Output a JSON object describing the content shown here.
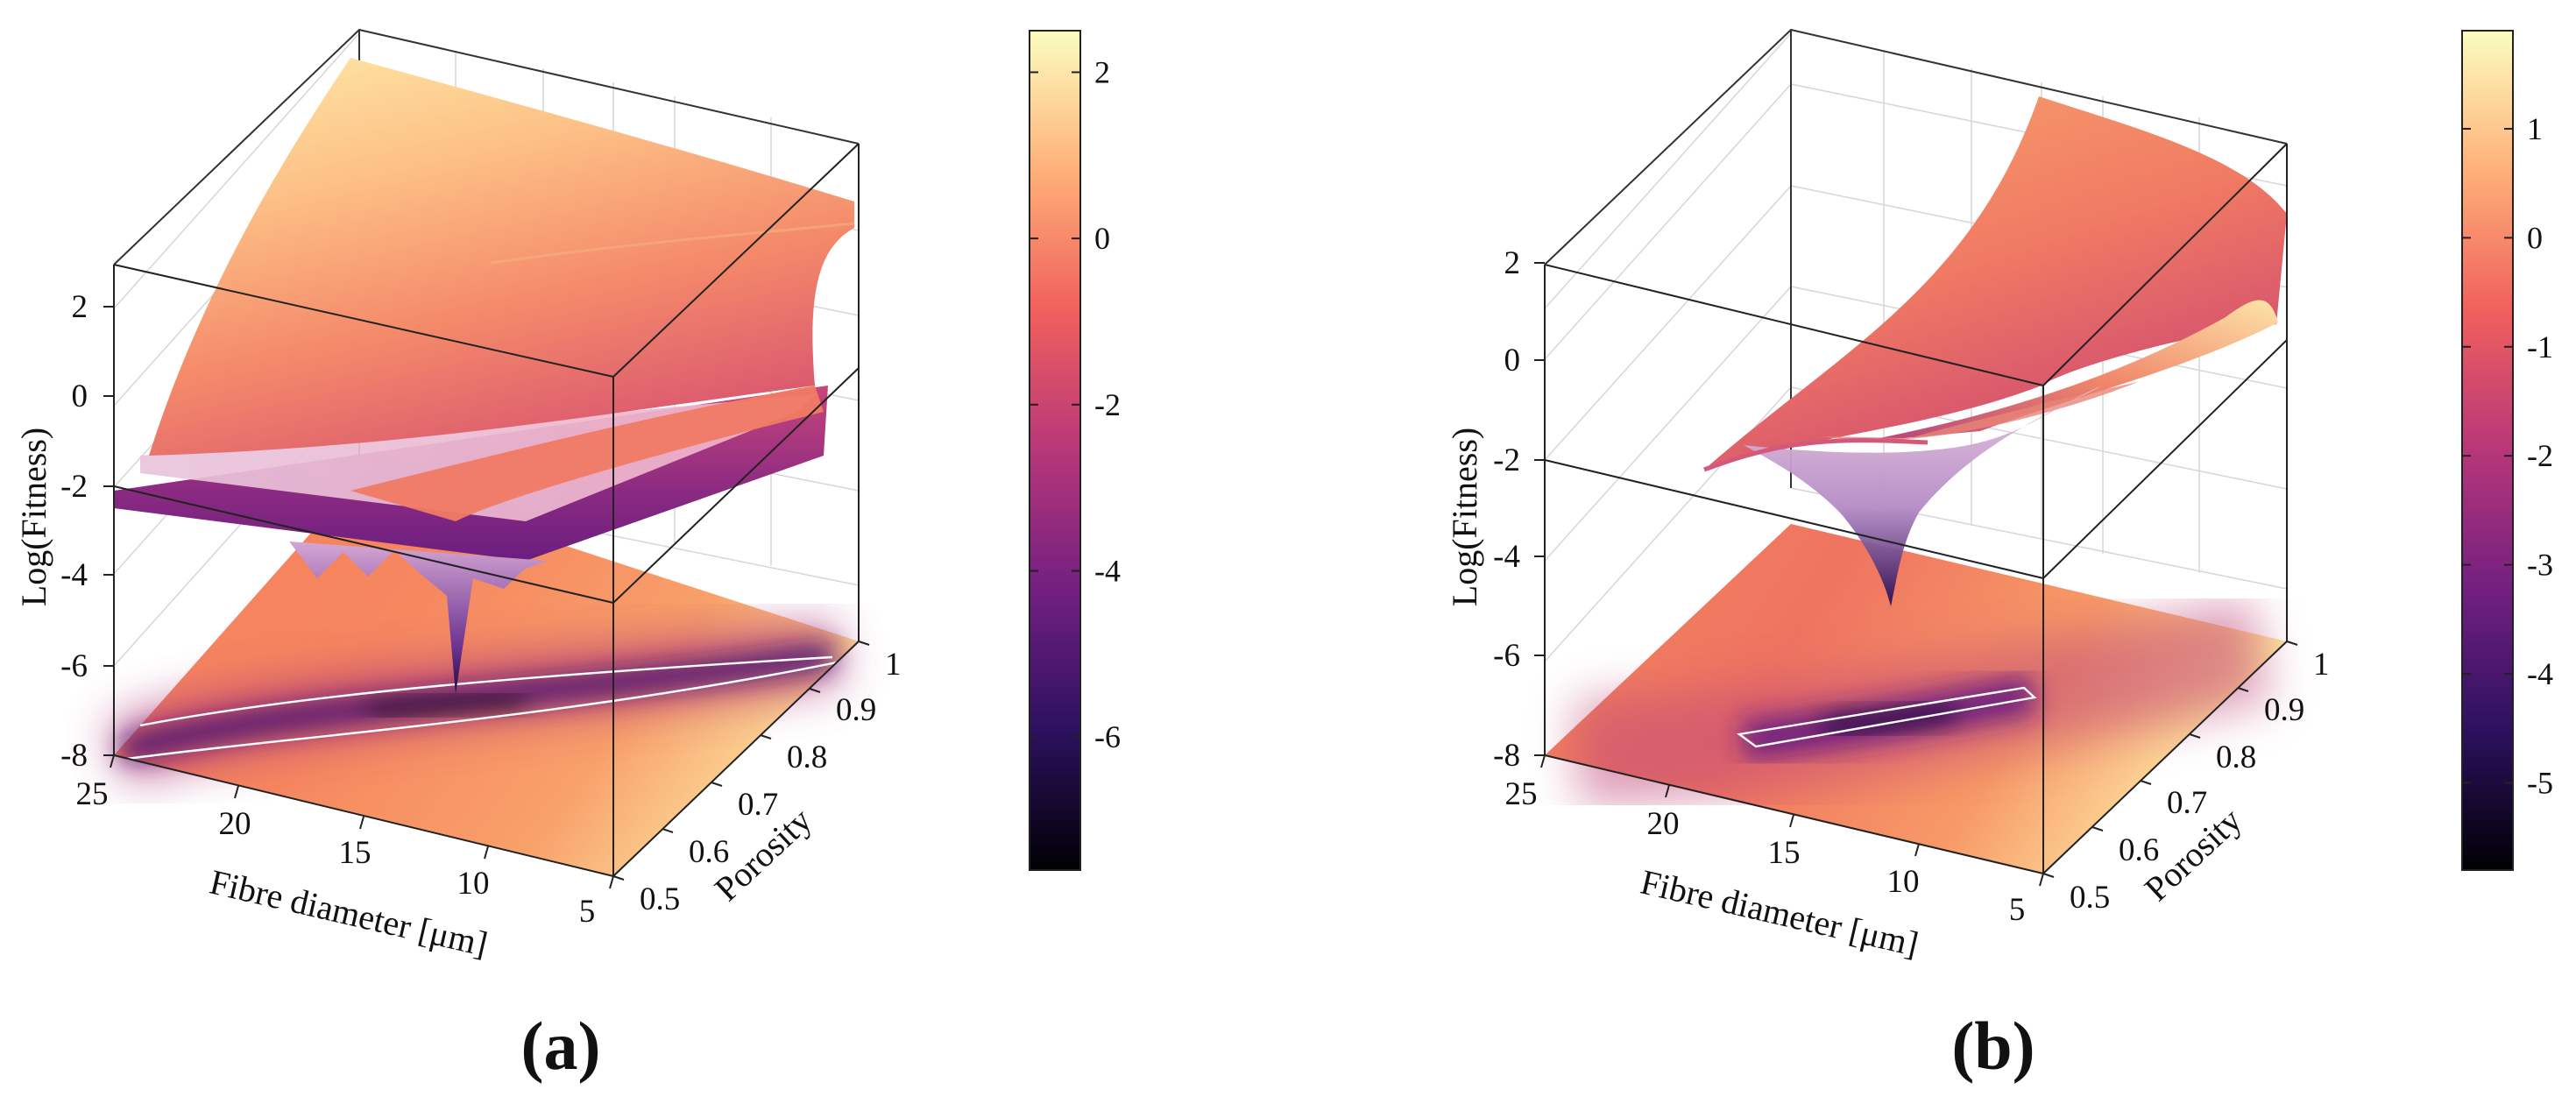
{
  "figure": {
    "panel_labels": [
      "(a)",
      "(b)"
    ]
  },
  "chart_data": [
    {
      "type": "surface3d",
      "panel": "(a)",
      "xlabel": "Fibre diameter [μm]",
      "ylabel": "Porosity",
      "zlabel": "Log(Fitness)",
      "x_ticks": [
        "25",
        "20",
        "15",
        "10",
        "5"
      ],
      "y_ticks": [
        "0.5",
        "0.6",
        "0.7",
        "0.8",
        "0.9",
        "1"
      ],
      "z_ticks": [
        "-8",
        "-6",
        "-4",
        "-2",
        "0",
        "2"
      ],
      "xlim": [
        5,
        25
      ],
      "ylim": [
        0.5,
        1
      ],
      "zlim": [
        -8,
        3
      ],
      "colorbar": {
        "ticks": [
          "-6",
          "-4",
          "-2",
          "0",
          "2"
        ],
        "range": [
          -7.6,
          2.5
        ]
      },
      "colormap": [
        "#000004",
        "#2c115f",
        "#721f81",
        "#b73779",
        "#f1605d",
        "#feb078",
        "#fcfdbf"
      ],
      "contour_color": "#ffffff"
    },
    {
      "type": "surface3d",
      "panel": "(b)",
      "xlabel": "Fibre diameter [μm]",
      "ylabel": "Porosity",
      "zlabel": "Log(Fitness)",
      "x_ticks": [
        "25",
        "20",
        "15",
        "10",
        "5"
      ],
      "y_ticks": [
        "0.5",
        "0.6",
        "0.7",
        "0.8",
        "0.9",
        "1"
      ],
      "z_ticks": [
        "-8",
        "-6",
        "-4",
        "-2",
        "0",
        "2"
      ],
      "xlim": [
        5,
        25
      ],
      "ylim": [
        0.5,
        1
      ],
      "zlim": [
        -8,
        2
      ],
      "colorbar": {
        "ticks": [
          "-5",
          "-4",
          "-3",
          "-2",
          "-1",
          "0",
          "1"
        ],
        "range": [
          -5.8,
          1.9
        ]
      },
      "colormap": [
        "#000004",
        "#2c115f",
        "#721f81",
        "#b73779",
        "#f1605d",
        "#feb078",
        "#fcfdbf"
      ],
      "contour_color": "#ffffff"
    }
  ]
}
